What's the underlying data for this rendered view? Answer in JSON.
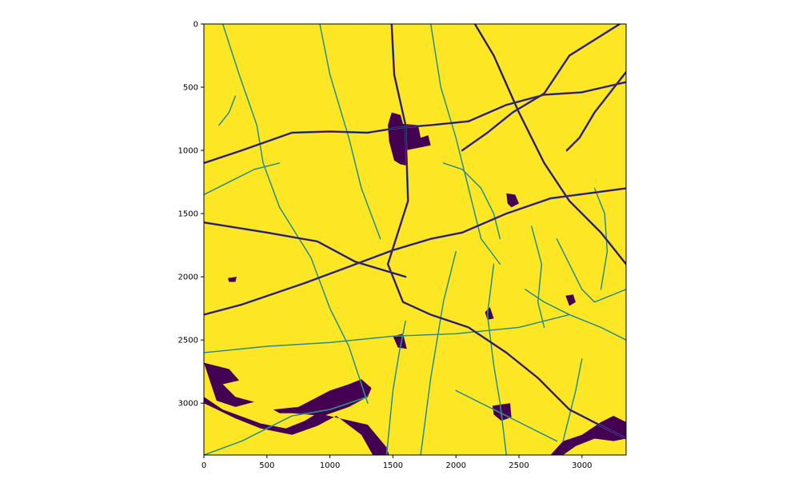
{
  "chart_data": {
    "type": "heatmap",
    "title": "",
    "xlabel": "",
    "ylabel": "",
    "xlim": [
      0,
      3350
    ],
    "ylim": [
      3410,
      0
    ],
    "xticks": [
      0,
      500,
      1000,
      1500,
      2000,
      2500,
      3000
    ],
    "yticks": [
      0,
      500,
      1000,
      1500,
      2000,
      2500,
      3000
    ],
    "xtick_labels": [
      "0",
      "500",
      "1000",
      "1500",
      "2000",
      "2500",
      "3000"
    ],
    "ytick_labels": [
      "0",
      "500",
      "1000",
      "1500",
      "2000",
      "2500",
      "3000"
    ],
    "colormap": "viridis",
    "colors": {
      "background": "#fde725",
      "major": "#440154",
      "mid": "#31688e",
      "minor": "#35b779"
    },
    "grid": false,
    "road_network": {
      "major_roads": [
        [
          [
            0,
            1100
          ],
          [
            300,
            1000
          ],
          [
            700,
            860
          ],
          [
            1000,
            850
          ],
          [
            1300,
            860
          ],
          [
            1550,
            820
          ],
          [
            1800,
            800
          ],
          [
            2100,
            770
          ],
          [
            2400,
            640
          ],
          [
            2700,
            560
          ],
          [
            3000,
            540
          ],
          [
            3350,
            460
          ]
        ],
        [
          [
            0,
            2300
          ],
          [
            300,
            2220
          ],
          [
            800,
            2050
          ],
          [
            1150,
            1920
          ],
          [
            1500,
            1790
          ],
          [
            1800,
            1700
          ],
          [
            2050,
            1650
          ],
          [
            2400,
            1500
          ],
          [
            2750,
            1380
          ],
          [
            3350,
            1300
          ]
        ],
        [
          [
            2150,
            0
          ],
          [
            2300,
            250
          ],
          [
            2500,
            700
          ],
          [
            2700,
            1100
          ],
          [
            2900,
            1400
          ],
          [
            3150,
            1650
          ],
          [
            3350,
            1900
          ]
        ],
        [
          [
            1490,
            0
          ],
          [
            1510,
            400
          ],
          [
            1600,
            800
          ],
          [
            1620,
            1400
          ],
          [
            1460,
            1900
          ],
          [
            1580,
            2200
          ],
          [
            1800,
            2300
          ],
          [
            2100,
            2400
          ],
          [
            2400,
            2600
          ],
          [
            2650,
            2800
          ],
          [
            2900,
            3050
          ],
          [
            3350,
            3280
          ]
        ],
        [
          [
            0,
            1570
          ],
          [
            500,
            1650
          ],
          [
            900,
            1720
          ],
          [
            1200,
            1880
          ],
          [
            1600,
            2000
          ]
        ],
        [
          [
            3350,
            380
          ],
          [
            3100,
            700
          ],
          [
            2980,
            900
          ],
          [
            2880,
            1000
          ]
        ],
        [
          [
            3300,
            0
          ],
          [
            2900,
            250
          ],
          [
            2700,
            550
          ],
          [
            2450,
            700
          ],
          [
            2250,
            860
          ],
          [
            2050,
            1000
          ]
        ]
      ],
      "minor_roads": [
        [
          [
            150,
            0
          ],
          [
            280,
            400
          ],
          [
            420,
            800
          ],
          [
            470,
            1100
          ],
          [
            600,
            1450
          ],
          [
            850,
            1850
          ],
          [
            1000,
            2250
          ],
          [
            1150,
            2550
          ],
          [
            1300,
            3000
          ]
        ],
        [
          [
            920,
            0
          ],
          [
            1000,
            400
          ],
          [
            1150,
            900
          ],
          [
            1250,
            1300
          ],
          [
            1400,
            1700
          ]
        ],
        [
          [
            1800,
            0
          ],
          [
            1880,
            500
          ],
          [
            2000,
            900
          ],
          [
            2100,
            1300
          ],
          [
            2200,
            1700
          ],
          [
            2350,
            1900
          ]
        ],
        [
          [
            0,
            2600
          ],
          [
            500,
            2550
          ],
          [
            1000,
            2520
          ],
          [
            1500,
            2470
          ],
          [
            2000,
            2450
          ],
          [
            2500,
            2400
          ],
          [
            2900,
            2300
          ]
        ],
        [
          [
            1600,
            2350
          ],
          [
            1550,
            2600
          ],
          [
            1500,
            2900
          ],
          [
            1450,
            3410
          ]
        ],
        [
          [
            2000,
            1800
          ],
          [
            1900,
            2200
          ],
          [
            1850,
            2500
          ],
          [
            1800,
            2800
          ],
          [
            1720,
            3410
          ]
        ],
        [
          [
            2300,
            1900
          ],
          [
            2250,
            2300
          ],
          [
            2300,
            2700
          ],
          [
            2350,
            3000
          ],
          [
            2400,
            3410
          ]
        ],
        [
          [
            0,
            3410
          ],
          [
            300,
            3300
          ],
          [
            700,
            3100
          ],
          [
            1000,
            3050
          ],
          [
            1300,
            2950
          ]
        ],
        [
          [
            2000,
            2900
          ],
          [
            2200,
            3000
          ],
          [
            2400,
            3100
          ],
          [
            2600,
            3200
          ],
          [
            2800,
            3300
          ]
        ],
        [
          [
            2550,
            2100
          ],
          [
            2700,
            2200
          ],
          [
            2900,
            2300
          ],
          [
            3150,
            2400
          ],
          [
            3350,
            2500
          ]
        ],
        [
          [
            2800,
            1700
          ],
          [
            2900,
            1900
          ],
          [
            3000,
            2100
          ],
          [
            3100,
            2200
          ],
          [
            3350,
            2100
          ]
        ],
        [
          [
            3100,
            1300
          ],
          [
            3180,
            1500
          ],
          [
            3200,
            1800
          ],
          [
            3150,
            2100
          ]
        ],
        [
          [
            3000,
            2650
          ],
          [
            2950,
            2900
          ],
          [
            2900,
            3100
          ],
          [
            2850,
            3300
          ]
        ],
        [
          [
            2600,
            1600
          ],
          [
            2680,
            1900
          ],
          [
            2650,
            2200
          ],
          [
            2700,
            2400
          ]
        ],
        [
          [
            1900,
            1100
          ],
          [
            2050,
            1150
          ],
          [
            2200,
            1300
          ],
          [
            2300,
            1500
          ],
          [
            2350,
            1700
          ]
        ],
        [
          [
            250,
            570
          ],
          [
            200,
            700
          ],
          [
            120,
            800
          ]
        ],
        [
          [
            0,
            1350
          ],
          [
            200,
            1250
          ],
          [
            400,
            1150
          ],
          [
            600,
            1100
          ]
        ]
      ],
      "major_areas": [
        [
          [
            1490,
            700
          ],
          [
            1560,
            720
          ],
          [
            1580,
            790
          ],
          [
            1700,
            800
          ],
          [
            1720,
            900
          ],
          [
            1780,
            880
          ],
          [
            1800,
            960
          ],
          [
            1600,
            1000
          ],
          [
            1610,
            1120
          ],
          [
            1560,
            1110
          ],
          [
            1510,
            1080
          ],
          [
            1470,
            930
          ],
          [
            1460,
            800
          ]
        ],
        [
          [
            2400,
            1340
          ],
          [
            2470,
            1350
          ],
          [
            2500,
            1420
          ],
          [
            2440,
            1450
          ],
          [
            2410,
            1420
          ]
        ],
        [
          [
            1500,
            2470
          ],
          [
            1580,
            2450
          ],
          [
            1610,
            2570
          ],
          [
            1540,
            2560
          ]
        ],
        [
          [
            2230,
            2280
          ],
          [
            2270,
            2240
          ],
          [
            2300,
            2330
          ],
          [
            2250,
            2340
          ]
        ],
        [
          [
            2870,
            2150
          ],
          [
            2930,
            2140
          ],
          [
            2950,
            2200
          ],
          [
            2900,
            2230
          ]
        ],
        [
          [
            2290,
            3020
          ],
          [
            2430,
            3000
          ],
          [
            2440,
            3110
          ],
          [
            2360,
            3140
          ],
          [
            2300,
            3090
          ]
        ],
        [
          [
            0,
            2680
          ],
          [
            200,
            2730
          ],
          [
            280,
            2820
          ],
          [
            150,
            2850
          ],
          [
            250,
            2950
          ],
          [
            400,
            2990
          ],
          [
            250,
            3030
          ],
          [
            100,
            2980
          ]
        ],
        [
          [
            0,
            2950
          ],
          [
            150,
            3050
          ],
          [
            450,
            3160
          ],
          [
            650,
            3200
          ],
          [
            800,
            3140
          ],
          [
            900,
            3080
          ],
          [
            1300,
            3170
          ],
          [
            1450,
            3350
          ],
          [
            1470,
            3410
          ],
          [
            1340,
            3410
          ],
          [
            1250,
            3250
          ],
          [
            1050,
            3100
          ],
          [
            900,
            3180
          ],
          [
            700,
            3250
          ],
          [
            450,
            3200
          ],
          [
            250,
            3120
          ],
          [
            0,
            3000
          ]
        ],
        [
          [
            550,
            3050
          ],
          [
            750,
            3030
          ],
          [
            1000,
            2900
          ],
          [
            1150,
            2850
          ],
          [
            1250,
            2810
          ],
          [
            1330,
            2880
          ],
          [
            1300,
            2950
          ],
          [
            1150,
            3030
          ],
          [
            950,
            3100
          ],
          [
            700,
            3080
          ],
          [
            600,
            3080
          ]
        ],
        [
          [
            2750,
            3410
          ],
          [
            2850,
            3300
          ],
          [
            3000,
            3250
          ],
          [
            3150,
            3150
          ],
          [
            3250,
            3100
          ],
          [
            3350,
            3150
          ],
          [
            3350,
            3280
          ],
          [
            3250,
            3300
          ],
          [
            3100,
            3280
          ],
          [
            2950,
            3340
          ],
          [
            2850,
            3410
          ]
        ],
        [
          [
            190,
            2010
          ],
          [
            260,
            2000
          ],
          [
            250,
            2040
          ],
          [
            200,
            2040
          ]
        ]
      ]
    }
  }
}
